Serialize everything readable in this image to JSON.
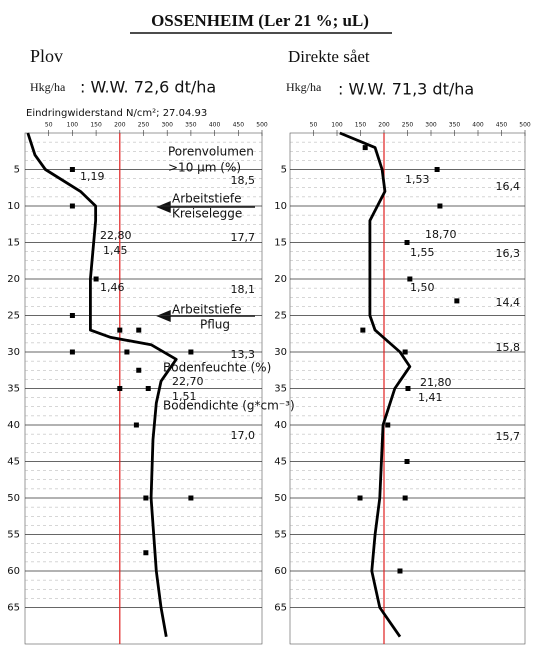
{
  "header": {
    "title": "OSSENHEIM (Ler 21 %; uL)",
    "left_label": "Plov",
    "right_label": "Direkte sået",
    "left_unit": "Hkg/ha",
    "left_yield": ": W.W. 72,6 dt/ha",
    "right_unit": "Hkg/ha",
    "right_yield": ": W.W. 71,3 dt/ha",
    "subtitle": "Eindringwiderstand N/cm²; 27.04.93"
  },
  "chart_data": [
    {
      "type": "profile",
      "xlim": [
        0,
        500
      ],
      "ylim": [
        0,
        70
      ],
      "xticks": [
        50,
        100,
        150,
        200,
        250,
        300,
        350,
        400,
        450,
        500
      ],
      "yticks": [
        5,
        10,
        15,
        20,
        25,
        30,
        35,
        40,
        45,
        50,
        55,
        60,
        65
      ],
      "reference_line": 200,
      "reference_color": "#e02020",
      "color": "#000000",
      "grid": true,
      "curve": {
        "x": [
          6,
          21,
          43,
          117,
          149,
          149,
          138,
          138,
          181,
          266,
          319,
          287,
          277,
          270,
          266,
          277,
          287,
          298
        ],
        "y": [
          0,
          3,
          5,
          8,
          10,
          12,
          20,
          27,
          28,
          29,
          31,
          34,
          37,
          42,
          50,
          60,
          65,
          69
        ]
      },
      "points": {
        "x": [
          100,
          100,
          150,
          100,
          200,
          240,
          100,
          215,
          350,
          240,
          260,
          200,
          235,
          255,
          350,
          255
        ],
        "y": [
          5,
          10,
          20,
          25,
          27,
          27,
          30,
          30,
          30,
          32.5,
          35,
          35,
          40,
          50,
          50,
          57.5
        ]
      },
      "annotations": [
        "1,19",
        "18,5",
        "22,80",
        "1,45",
        "17,7",
        "1,46",
        "18,1",
        "13,3",
        "22,70",
        "1,51",
        "17,0",
        "Porenvolumen",
        ">10 µm (%)",
        "Arbeitstiefe",
        "Kreiselegge",
        "Arbeitstiefe",
        "Pflug",
        "Bodenfeuchte (%)",
        "Bodendichte (g*cm⁻³)"
      ]
    },
    {
      "type": "profile",
      "xlim": [
        0,
        500
      ],
      "ylim": [
        0,
        70
      ],
      "xticks": [
        50,
        100,
        150,
        200,
        250,
        300,
        350,
        400,
        450,
        500
      ],
      "yticks": [
        5,
        10,
        15,
        20,
        25,
        30,
        35,
        40,
        45,
        50,
        55,
        60,
        65
      ],
      "reference_line": 200,
      "reference_color": "#e02020",
      "color": "#000000",
      "grid": true,
      "curve": {
        "x": [
          106,
          181,
          196,
          202,
          170,
          170,
          170,
          181,
          234,
          255,
          223,
          213,
          198,
          191,
          181,
          174,
          191,
          234
        ],
        "y": [
          0,
          2,
          5,
          8,
          12,
          15,
          25,
          27,
          30,
          32,
          35,
          37,
          40,
          50,
          55,
          60,
          65,
          69
        ]
      },
      "points": {
        "x": [
          160,
          313,
          319,
          249,
          255,
          355,
          155,
          245,
          251,
          208,
          249,
          149,
          245,
          234
        ],
        "y": [
          2,
          5,
          10,
          15,
          20,
          23,
          27,
          30,
          35,
          40,
          45,
          50,
          50,
          60
        ]
      },
      "annotations": [
        "1,53",
        "16,4",
        "18,70",
        "1,55",
        "16,3",
        "1,50",
        "14,4",
        "15,8",
        "21,80",
        "1,41",
        "15,7"
      ]
    }
  ]
}
